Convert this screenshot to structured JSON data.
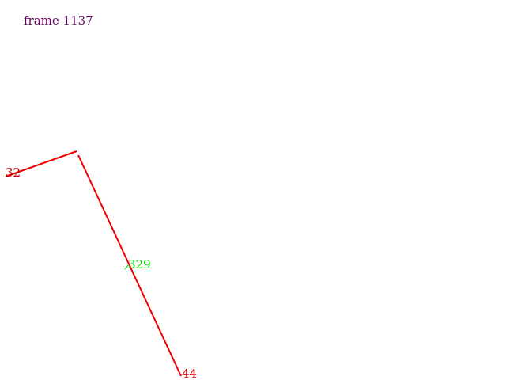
{
  "frame_label": "frame 1137",
  "colors": {
    "background": "#ffffff",
    "frame_label": "#660066",
    "segment": "#ee0000",
    "label_red": "#cc0000",
    "label_green": "#00dd00"
  },
  "labels": {
    "left_end": "32",
    "midpoint": "329",
    "bottom_end": "44"
  }
}
